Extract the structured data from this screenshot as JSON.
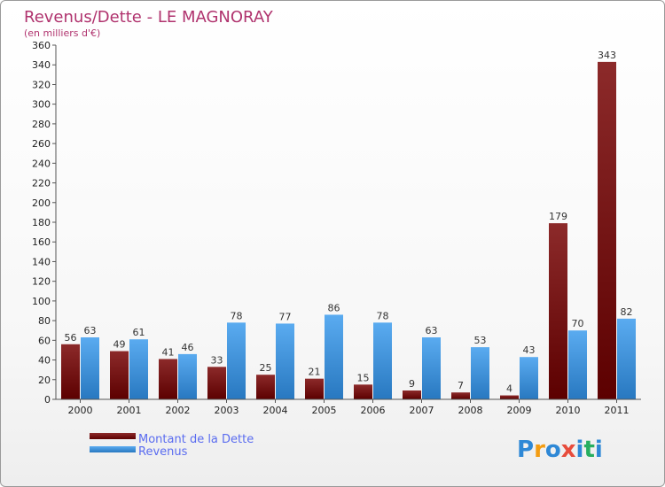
{
  "chart_data": {
    "type": "bar",
    "title": "Revenus/Dette - LE MAGNORAY",
    "subtitle": "(en milliers d'€)",
    "categories": [
      "2000",
      "2001",
      "2002",
      "2003",
      "2004",
      "2005",
      "2006",
      "2007",
      "2008",
      "2009",
      "2010",
      "2011"
    ],
    "series": [
      {
        "name": "Montant de la Dette",
        "color": "#7a1515",
        "values": [
          56,
          49,
          41,
          33,
          25,
          21,
          15,
          9,
          7,
          4,
          179,
          343
        ]
      },
      {
        "name": "Revenus",
        "color": "#3d8fd8",
        "values": [
          63,
          61,
          46,
          78,
          77,
          86,
          78,
          63,
          53,
          43,
          70,
          82
        ]
      }
    ],
    "ylim": [
      0,
      360
    ],
    "ytick_step": 20,
    "grid": false,
    "legend": "bottom-left"
  },
  "brand": {
    "letters": [
      "P",
      "r",
      "o",
      "x",
      "i",
      "t",
      "i"
    ],
    "colors": [
      "#2e88d6",
      "#f39c12",
      "#2e88d6",
      "#e74c3c",
      "#2e88d6",
      "#27ae60",
      "#2e88d6"
    ]
  }
}
